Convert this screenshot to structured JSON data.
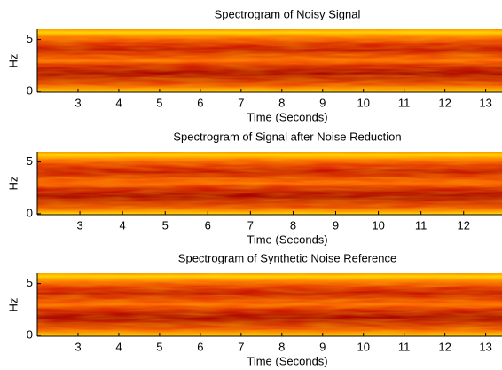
{
  "chart_data": [
    {
      "type": "heatmap",
      "title": "Spectrogram of Noisy Signal",
      "xlabel": "Time (Seconds)",
      "ylabel": "Hz",
      "xlim": [
        2,
        13.4
      ],
      "xticks": [
        3,
        4,
        5,
        6,
        7,
        8,
        9,
        10,
        11,
        12,
        13
      ],
      "ylim": [
        -0.1,
        6
      ],
      "yticks": [
        0,
        5
      ]
    },
    {
      "type": "heatmap",
      "title": "Spectrogram of Signal after Noise Reduction",
      "xlabel": "Time (Seconds)",
      "ylabel": "Hz",
      "xlim": [
        2,
        12.9
      ],
      "xticks": [
        3,
        4,
        5,
        6,
        7,
        8,
        9,
        10,
        11,
        12
      ],
      "ylim": [
        -0.1,
        6
      ],
      "yticks": [
        0,
        5
      ]
    },
    {
      "type": "heatmap",
      "title": "Spectrogram of Synthetic Noise Reference",
      "xlabel": "Time (Seconds)",
      "ylabel": "Hz",
      "xlim": [
        2,
        13.4
      ],
      "xticks": [
        3,
        4,
        5,
        6,
        7,
        8,
        9,
        10,
        11,
        12,
        13
      ],
      "ylim": [
        -0.1,
        6
      ],
      "yticks": [
        0,
        5
      ]
    }
  ]
}
